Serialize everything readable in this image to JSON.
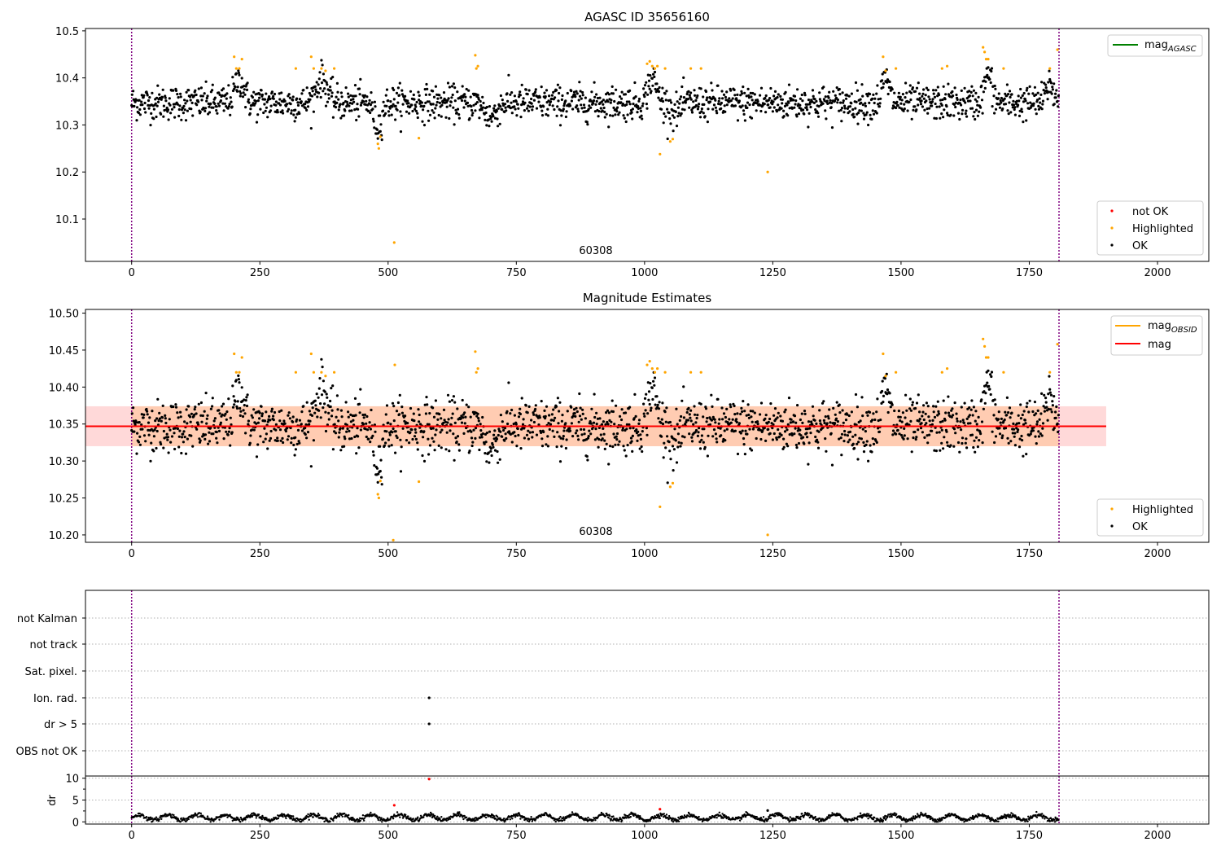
{
  "chart_data": [
    {
      "type": "scatter",
      "title": "AGASC ID 35656160",
      "xlabel": "",
      "ylabel": "",
      "xlim": [
        -90,
        2100
      ],
      "ylim": [
        10.01,
        10.505
      ],
      "xticks": [
        0,
        250,
        500,
        750,
        1000,
        1250,
        1500,
        1750,
        2000
      ],
      "yticks": [
        10.1,
        10.2,
        10.3,
        10.4,
        10.5
      ],
      "ytick_labels": [
        "10.1",
        "10.2",
        "10.3",
        "10.4",
        "10.5"
      ],
      "vlines": [
        0,
        1808
      ],
      "annotation": {
        "text": "60308",
        "x": 904,
        "y": 10.03
      },
      "baseline": 10.347,
      "n_points": 1808,
      "noise": 0.024,
      "series": [
        {
          "name": "not OK",
          "color": "#ff0000",
          "x": [],
          "y": []
        },
        {
          "name": "Highlighted",
          "color": "#ffa500",
          "x": [
            200,
            204,
            210,
            215,
            320,
            350,
            355,
            370,
            378,
            395,
            480,
            482,
            485,
            512,
            560,
            670,
            672,
            675,
            1005,
            1010,
            1015,
            1020,
            1025,
            1030,
            1040,
            1050,
            1055,
            1090,
            1110,
            1240,
            1465,
            1470,
            1490,
            1580,
            1590,
            1660,
            1663,
            1666,
            1670,
            1700,
            1790,
            1805
          ],
          "y": [
            10.445,
            10.42,
            10.42,
            10.44,
            10.42,
            10.445,
            10.42,
            10.42,
            10.415,
            10.42,
            10.26,
            10.25,
            10.275,
            10.05,
            10.272,
            10.448,
            10.42,
            10.425,
            10.43,
            10.435,
            10.425,
            10.42,
            10.425,
            10.238,
            10.42,
            10.265,
            10.27,
            10.42,
            10.42,
            10.2,
            10.445,
            10.415,
            10.42,
            10.42,
            10.425,
            10.465,
            10.455,
            10.44,
            10.44,
            10.42,
            10.42,
            10.46
          ]
        },
        {
          "name": "OK",
          "color": "#000000",
          "x": [],
          "y": []
        }
      ],
      "lines": [
        {
          "name": "mag_AGASC",
          "label_main": "mag",
          "label_sub": "AGASC",
          "color": "#008000"
        }
      ],
      "legend_lines_position": "upper right",
      "legend_points_position": "lower right"
    },
    {
      "type": "scatter",
      "title": "Magnitude Estimates",
      "xlabel": "",
      "ylabel": "",
      "xlim": [
        -90,
        2100
      ],
      "ylim": [
        10.19,
        10.505
      ],
      "xticks": [
        0,
        250,
        500,
        750,
        1000,
        1250,
        1500,
        1750,
        2000
      ],
      "yticks": [
        10.2,
        10.25,
        10.3,
        10.35,
        10.4,
        10.45,
        10.5
      ],
      "ytick_labels": [
        "10.20",
        "10.25",
        "10.30",
        "10.35",
        "10.40",
        "10.45",
        "10.50"
      ],
      "vlines": [
        0,
        1808
      ],
      "annotation": {
        "text": "60308",
        "x": 904,
        "y": 10.2
      },
      "baseline": 10.347,
      "mag": 10.347,
      "band_mag": [
        10.32,
        10.374
      ],
      "band_obsid": [
        10.32,
        10.374
      ],
      "band_x": [
        -90,
        1900
      ],
      "band_obsid_x": [
        0,
        1808
      ],
      "series": [
        {
          "name": "Highlighted",
          "color": "#ffa500",
          "x": [
            200,
            204,
            210,
            215,
            320,
            350,
            355,
            370,
            378,
            395,
            480,
            482,
            485,
            510,
            513,
            560,
            670,
            672,
            675,
            1005,
            1010,
            1015,
            1020,
            1025,
            1030,
            1040,
            1050,
            1055,
            1090,
            1110,
            1240,
            1465,
            1470,
            1490,
            1580,
            1590,
            1660,
            1663,
            1666,
            1670,
            1700,
            1790,
            1805
          ],
          "y": [
            10.445,
            10.42,
            10.42,
            10.44,
            10.42,
            10.445,
            10.42,
            10.42,
            10.415,
            10.42,
            10.255,
            10.25,
            10.273,
            10.193,
            10.43,
            10.272,
            10.448,
            10.42,
            10.425,
            10.43,
            10.435,
            10.425,
            10.42,
            10.425,
            10.238,
            10.42,
            10.265,
            10.27,
            10.42,
            10.42,
            10.2,
            10.445,
            10.415,
            10.42,
            10.42,
            10.425,
            10.465,
            10.455,
            10.44,
            10.44,
            10.42,
            10.42,
            10.458
          ]
        },
        {
          "name": "OK",
          "color": "#000000",
          "x": [],
          "y": []
        }
      ],
      "lines": [
        {
          "name": "mag_OBSID",
          "label_main": "mag",
          "label_sub": "OBSID",
          "color": "#ffa500"
        },
        {
          "name": "mag",
          "label_main": "mag",
          "label_sub": "",
          "color": "#ff0000"
        }
      ],
      "legend_lines_position": "upper right",
      "legend_points_position": "lower right"
    },
    {
      "type": "scatter",
      "title": "",
      "xlim": [
        -90,
        2100
      ],
      "categories": [
        "not Kalman",
        "not track",
        "Sat. pixel.",
        "Ion. rad.",
        "dr > 5",
        "OBS not OK"
      ],
      "vlines": [
        0,
        1808
      ],
      "flag_points": [
        {
          "category": "Ion. rad.",
          "x": 580
        },
        {
          "category": "dr > 5",
          "x": 580
        }
      ]
    },
    {
      "type": "scatter",
      "title": "",
      "xlim": [
        -90,
        2100
      ],
      "ylim": [
        -0.5,
        10.5
      ],
      "ylabel": "dr",
      "yticks": [
        0,
        5,
        10
      ],
      "ytick_labels": [
        "0",
        "5",
        "10"
      ],
      "xticks": [
        0,
        250,
        500,
        750,
        1000,
        1250,
        1500,
        1750,
        2000
      ],
      "vlines": [
        0,
        1808
      ],
      "outliers": [
        {
          "x": 580,
          "y": 9.8,
          "color": "#ff0000"
        },
        {
          "x": 512,
          "y": 3.8,
          "color": "#ff0000"
        },
        {
          "x": 1030,
          "y": 2.9,
          "color": "#ff0000"
        },
        {
          "x": 1240,
          "y": 2.6,
          "color": "#000000"
        }
      ]
    }
  ],
  "colors": {
    "ok": "#000000",
    "highlighted": "#ffa500",
    "not_ok": "#ff0000",
    "vline": "#800080",
    "band": "#ffd9d9",
    "band_obsid": "#ffc8a8"
  },
  "legends": {
    "top_points": [
      "not OK",
      "Highlighted",
      "OK"
    ],
    "mid_points": [
      "Highlighted",
      "OK"
    ]
  }
}
